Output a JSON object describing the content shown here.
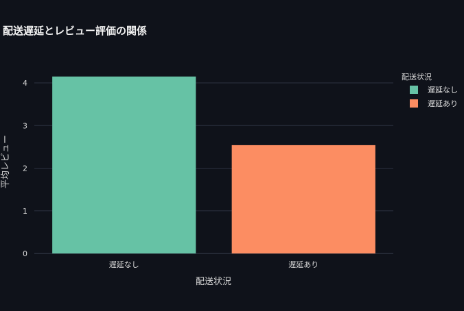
{
  "chart_data": {
    "type": "bar",
    "title": "配送遅延とレビュー評価の関係",
    "xlabel": "配送状況",
    "ylabel": "平均レビュー",
    "categories": [
      "遅延なし",
      "遅延あり"
    ],
    "series": [
      {
        "name": "遅延なし",
        "values": [
          4.15,
          null
        ],
        "color": "#66c2a5"
      },
      {
        "name": "遅延あり",
        "values": [
          null,
          2.54
        ],
        "color": "#fc8d62"
      }
    ],
    "ylim": [
      0,
      4.37
    ],
    "yticks": [
      "0",
      "1",
      "2",
      "3",
      "4"
    ],
    "grid": true,
    "legend": {
      "title": "配送状況",
      "placement": "top-right"
    }
  }
}
